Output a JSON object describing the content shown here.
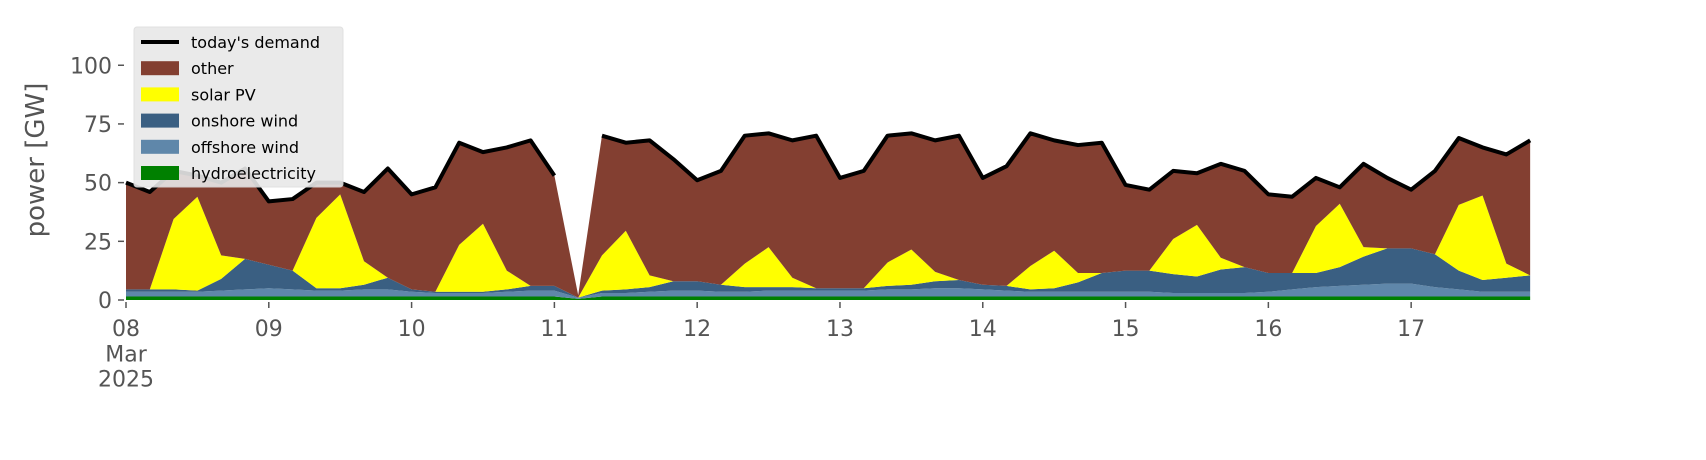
{
  "chart_data": {
    "type": "stacked_area",
    "y_label": "power [GW]",
    "x": [
      0,
      4,
      8,
      12,
      16,
      20,
      24,
      28,
      32,
      36,
      40,
      44,
      48,
      52,
      56,
      60,
      64,
      68,
      72,
      76,
      80,
      84,
      88,
      92,
      96,
      100,
      104,
      108,
      112,
      116,
      120,
      124,
      128,
      132,
      136,
      140,
      144,
      148,
      152,
      156,
      160,
      164,
      168,
      172,
      176,
      180,
      184,
      188,
      192,
      196,
      200,
      204,
      208,
      212,
      216,
      220,
      224,
      228,
      232,
      236
    ],
    "xlim": [
      0,
      239
    ],
    "xticks": [
      {
        "value": 0,
        "label": "08\nMar\n2025"
      },
      {
        "value": 24,
        "label": "09"
      },
      {
        "value": 48,
        "label": "10"
      },
      {
        "value": 72,
        "label": "11"
      },
      {
        "value": 96,
        "label": "12"
      },
      {
        "value": 120,
        "label": "13"
      },
      {
        "value": 144,
        "label": "14"
      },
      {
        "value": 168,
        "label": "15"
      },
      {
        "value": 192,
        "label": "16"
      },
      {
        "value": 216,
        "label": "17"
      }
    ],
    "ylim": [
      0,
      118
    ],
    "yticks": [
      0,
      25,
      50,
      75,
      100
    ],
    "legend": "upper left",
    "demand": {
      "name": "today's demand",
      "color": "#000000",
      "values": [
        50,
        46,
        55,
        53,
        50,
        56,
        42,
        43,
        50,
        50,
        46,
        56,
        45,
        48,
        67,
        63,
        65,
        68,
        53,
        null,
        70,
        67,
        68,
        60,
        51,
        55,
        70,
        71,
        68,
        70,
        52,
        55,
        70,
        71,
        68,
        70,
        52,
        57,
        71,
        68,
        66,
        67,
        49,
        47,
        55,
        54,
        58,
        55,
        45,
        44,
        52,
        48,
        58,
        52,
        47,
        55,
        69,
        65,
        62,
        68
      ]
    },
    "series": [
      {
        "name": "hydroelectricity",
        "color": "#008000",
        "values": [
          1.5,
          1.5,
          1.5,
          1.5,
          1.5,
          1.5,
          1.5,
          1.5,
          1.5,
          1.5,
          1.5,
          1.5,
          1.5,
          1.5,
          1.5,
          1.5,
          1.5,
          1.5,
          1.5,
          0.5,
          1.5,
          1.5,
          1.5,
          1.5,
          1.5,
          1.5,
          1.5,
          1.5,
          1.5,
          1.5,
          1.5,
          1.5,
          1.5,
          1.5,
          1.5,
          1.5,
          1.5,
          1.5,
          1.5,
          1.5,
          1.5,
          1.5,
          1.5,
          1.5,
          1.5,
          1.5,
          1.5,
          1.5,
          1.5,
          1.5,
          1.5,
          1.5,
          1.5,
          1.5,
          1.5,
          1.5,
          1.5,
          1.5,
          1.5,
          1.5
        ]
      },
      {
        "name": "offshore wind",
        "color": "#5f87aa",
        "values": [
          2,
          2,
          2,
          2,
          2.5,
          3,
          3.5,
          3,
          2.5,
          2.5,
          3,
          3,
          2,
          1.5,
          1.5,
          1.5,
          2,
          2.5,
          2.5,
          0.5,
          1.5,
          1.5,
          2,
          2.5,
          2.5,
          2,
          2,
          2.5,
          2.5,
          2.5,
          2.5,
          2.5,
          3,
          3,
          3.5,
          3.5,
          3,
          2.5,
          2,
          2,
          2,
          2,
          2,
          2,
          1.5,
          1.5,
          1.5,
          1.5,
          2,
          3,
          4,
          4.5,
          5,
          5.5,
          5.5,
          4,
          3,
          2,
          2,
          2
        ]
      },
      {
        "name": "onshore wind",
        "color": "#3a5f82",
        "values": [
          1,
          1,
          1,
          0.5,
          5,
          13,
          10,
          8,
          1,
          1,
          2,
          5,
          1,
          0.5,
          0.5,
          0.5,
          1,
          2,
          2,
          0,
          1,
          1.5,
          2,
          4,
          4,
          3,
          2,
          1.5,
          1.5,
          1,
          1,
          1,
          1.5,
          2,
          3,
          3.5,
          2,
          2,
          1,
          1.5,
          4,
          8,
          9,
          9,
          8,
          7,
          10,
          11,
          8,
          7,
          6,
          8,
          12,
          15,
          15,
          14,
          8,
          5,
          6,
          7
        ]
      },
      {
        "name": "solar PV",
        "color": "#ffff00",
        "values": [
          0,
          0,
          30,
          40,
          10,
          0,
          0,
          0,
          30,
          40,
          10,
          0,
          0,
          0,
          20,
          29,
          8,
          0,
          0,
          0,
          15,
          25,
          5,
          0,
          0,
          0,
          10,
          17,
          4,
          0,
          0,
          0,
          10,
          15,
          4,
          0,
          0,
          0,
          10,
          16,
          4,
          0,
          0,
          0,
          15,
          22,
          5,
          0,
          0,
          0,
          20,
          27,
          4,
          0,
          0,
          0,
          28,
          36,
          6,
          0
        ]
      },
      {
        "name": "other",
        "color": "#833f31",
        "values": [
          45.5,
          41.5,
          20.5,
          9,
          31,
          38.5,
          27,
          30.5,
          15,
          5,
          29.5,
          46.5,
          40.5,
          44.5,
          43.5,
          30.5,
          52.5,
          62,
          47,
          1,
          51,
          37.5,
          57.5,
          52,
          43,
          48.5,
          54.5,
          48.5,
          58.5,
          65,
          47,
          50,
          54,
          49.5,
          56,
          61.5,
          45.5,
          51,
          56.5,
          47,
          54.5,
          55.5,
          36.5,
          34.5,
          29,
          22,
          40,
          41,
          33.5,
          32.5,
          20.5,
          7,
          35.5,
          30,
          25,
          35.5,
          28.5,
          20.5,
          46.5,
          57.5
        ]
      }
    ]
  }
}
